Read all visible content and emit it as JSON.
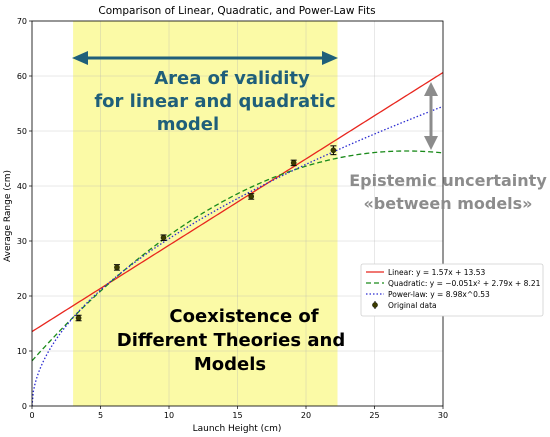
{
  "chart_data": {
    "type": "scatter",
    "title": "Comparison of Linear, Quadratic, and Power-Law Fits",
    "xlabel": "Launch Height (cm)",
    "ylabel": "Average Range (cm)",
    "xlim": [
      0,
      30
    ],
    "ylim": [
      0,
      70
    ],
    "xticks": [
      "0",
      "5",
      "10",
      "15",
      "20",
      "25",
      "30"
    ],
    "yticks": [
      "0",
      "10",
      "20",
      "30",
      "40",
      "50",
      "60",
      "70"
    ],
    "grid": true,
    "legend_position": "center-right",
    "data": {
      "name": "Original data",
      "x": [
        3.4,
        6.2,
        9.6,
        16.0,
        19.1,
        22.0
      ],
      "y": [
        16.0,
        25.2,
        30.6,
        38.1,
        44.2,
        46.5
      ],
      "yerr": [
        0.5,
        0.5,
        0.5,
        0.5,
        0.5,
        0.8
      ]
    },
    "fits": [
      {
        "name": "Linear: y = 1.57x + 13.53",
        "kind": "linear",
        "params": [
          1.57,
          13.53
        ],
        "color": "#e8261e",
        "dash": "solid"
      },
      {
        "name": "Quadratic: y = −0.051x² + 2.79x + 8.21",
        "kind": "quadratic",
        "params": [
          -0.051,
          2.79,
          8.21
        ],
        "color": "#1a8a1a",
        "dash": "dashed"
      },
      {
        "name": "Power-law: y = 8.98x^0.53",
        "kind": "power",
        "params": [
          8.98,
          0.53
        ],
        "color": "#2a2ad0",
        "dash": "dotted"
      }
    ],
    "legend_markers": {
      "data_label": "Original data"
    },
    "shaded_region": {
      "x_from": 3.0,
      "x_to": 22.3,
      "color": "#fbfaa6"
    },
    "annotations": {
      "validity_line1": "Area of validity",
      "validity_line2": "for linear and quadratic",
      "validity_line3": "model",
      "coexist_line1": "Coexistence of",
      "coexist_line2": "Different Theories and",
      "coexist_line3": "Models",
      "uncertainty_line1": "Epistemic uncertainty",
      "uncertainty_line2": "«between models»"
    },
    "colors": {
      "arrow_blue": "#1f5f7a",
      "arrow_grey": "#8c8c8c",
      "marker": "#3b3b00"
    }
  }
}
